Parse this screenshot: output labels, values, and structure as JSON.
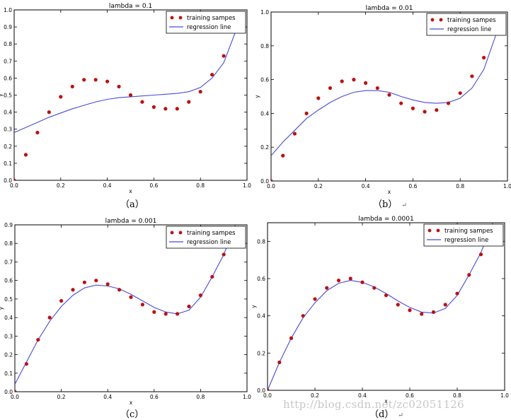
{
  "chart_data": [
    {
      "type": "scatter+line",
      "title": "lambda = 0.1",
      "xlabel": "x",
      "ylabel": "y",
      "xlim": [
        0.0,
        1.0
      ],
      "ylim": [
        0.0,
        1.0
      ],
      "xticks": [
        "0.0",
        "0.2",
        "0.4",
        "0.6",
        "0.8",
        "1.0"
      ],
      "yticks": [
        "0.0",
        "0.1",
        "0.2",
        "0.3",
        "0.4",
        "0.5",
        "0.6",
        "0.7",
        "0.8",
        "0.9",
        "1.0"
      ],
      "legend": [
        "training sampes",
        "regression line"
      ],
      "legend_position": "top-right",
      "caption": "（a）",
      "caption_mark": "",
      "samples_x": [
        0.0,
        0.05,
        0.1,
        0.15,
        0.2,
        0.25,
        0.3,
        0.35,
        0.4,
        0.45,
        0.5,
        0.55,
        0.6,
        0.65,
        0.7,
        0.75,
        0.8,
        0.85,
        0.9
      ],
      "samples_y": [
        0.0,
        0.15,
        0.28,
        0.4,
        0.49,
        0.55,
        0.59,
        0.59,
        0.58,
        0.55,
        0.5,
        0.46,
        0.43,
        0.42,
        0.42,
        0.46,
        0.52,
        0.62,
        0.73
      ],
      "line_x": [
        0.0,
        0.05,
        0.1,
        0.15,
        0.2,
        0.25,
        0.3,
        0.35,
        0.4,
        0.45,
        0.5,
        0.55,
        0.6,
        0.65,
        0.7,
        0.75,
        0.8,
        0.85,
        0.9,
        0.95
      ],
      "line_y": [
        0.28,
        0.31,
        0.34,
        0.37,
        0.395,
        0.42,
        0.44,
        0.46,
        0.475,
        0.485,
        0.49,
        0.495,
        0.5,
        0.505,
        0.51,
        0.52,
        0.545,
        0.6,
        0.69,
        0.87
      ]
    },
    {
      "type": "scatter+line",
      "title": "lambda = 0.01",
      "xlabel": "x",
      "ylabel": "y",
      "xlim": [
        0.0,
        1.0
      ],
      "ylim": [
        0.0,
        1.0
      ],
      "xticks": [
        "0.0",
        "0.2",
        "0.4",
        "0.6",
        "0.8",
        "1.0"
      ],
      "yticks": [
        "0.0",
        "0.2",
        "0.4",
        "0.6",
        "0.8",
        "1.0"
      ],
      "legend": [
        "training sampes",
        "regression line"
      ],
      "legend_position": "top-right",
      "caption": "（b）",
      "caption_mark": "↵",
      "samples_x": [
        0.0,
        0.05,
        0.1,
        0.15,
        0.2,
        0.25,
        0.3,
        0.35,
        0.4,
        0.45,
        0.5,
        0.55,
        0.6,
        0.65,
        0.7,
        0.75,
        0.8,
        0.85,
        0.9
      ],
      "samples_y": [
        0.0,
        0.15,
        0.28,
        0.4,
        0.49,
        0.55,
        0.59,
        0.6,
        0.58,
        0.55,
        0.51,
        0.46,
        0.43,
        0.41,
        0.42,
        0.46,
        0.52,
        0.62,
        0.73
      ],
      "line_x": [
        0.0,
        0.05,
        0.1,
        0.15,
        0.2,
        0.25,
        0.3,
        0.35,
        0.4,
        0.45,
        0.5,
        0.55,
        0.6,
        0.65,
        0.7,
        0.75,
        0.8,
        0.85,
        0.9,
        0.95
      ],
      "line_y": [
        0.15,
        0.23,
        0.3,
        0.37,
        0.42,
        0.465,
        0.5,
        0.525,
        0.535,
        0.535,
        0.525,
        0.5,
        0.48,
        0.465,
        0.46,
        0.465,
        0.49,
        0.55,
        0.66,
        0.86
      ]
    },
    {
      "type": "scatter+line",
      "title": "lambda = 0.001",
      "xlabel": "x",
      "ylabel": "y",
      "xlim": [
        0.0,
        1.0
      ],
      "ylim": [
        0.0,
        0.9
      ],
      "xticks": [
        "0.0",
        "0.2",
        "0.4",
        "0.6",
        "0.8",
        "1.0"
      ],
      "yticks": [
        "0.0",
        "0.1",
        "0.2",
        "0.3",
        "0.4",
        "0.5",
        "0.6",
        "0.7",
        "0.8",
        "0.9"
      ],
      "legend": [
        "training sampes",
        "regression line"
      ],
      "legend_position": "top-right",
      "caption": "（c）",
      "caption_mark": "",
      "samples_x": [
        0.0,
        0.05,
        0.1,
        0.15,
        0.2,
        0.25,
        0.3,
        0.35,
        0.4,
        0.45,
        0.5,
        0.55,
        0.6,
        0.65,
        0.7,
        0.75,
        0.8,
        0.85,
        0.9
      ],
      "samples_y": [
        0.0,
        0.15,
        0.28,
        0.4,
        0.49,
        0.55,
        0.59,
        0.6,
        0.58,
        0.55,
        0.51,
        0.47,
        0.43,
        0.42,
        0.42,
        0.46,
        0.52,
        0.62,
        0.74
      ],
      "line_x": [
        0.0,
        0.05,
        0.1,
        0.15,
        0.2,
        0.25,
        0.3,
        0.35,
        0.4,
        0.45,
        0.5,
        0.55,
        0.6,
        0.65,
        0.7,
        0.75,
        0.8,
        0.85,
        0.9,
        0.95
      ],
      "line_y": [
        0.04,
        0.16,
        0.28,
        0.38,
        0.46,
        0.52,
        0.56,
        0.575,
        0.57,
        0.555,
        0.525,
        0.49,
        0.455,
        0.43,
        0.42,
        0.44,
        0.51,
        0.62,
        0.74,
        0.9
      ]
    },
    {
      "type": "scatter+line",
      "title": "lambda = 0.0001",
      "xlabel": "x",
      "ylabel": "y",
      "xlim": [
        0.0,
        1.0
      ],
      "ylim": [
        0.0,
        0.9
      ],
      "xticks": [
        "0.0",
        "0.2",
        "0.4",
        "0.6",
        "0.8",
        "1.0"
      ],
      "yticks": [
        "0.0",
        "0.2",
        "0.4",
        "0.6",
        "0.8"
      ],
      "legend": [
        "training sampes",
        "regression line"
      ],
      "legend_position": "top-right",
      "caption": "（d）",
      "caption_mark": "↵",
      "samples_x": [
        0.0,
        0.05,
        0.1,
        0.15,
        0.2,
        0.25,
        0.3,
        0.35,
        0.4,
        0.45,
        0.5,
        0.55,
        0.6,
        0.65,
        0.7,
        0.75,
        0.8,
        0.85,
        0.9
      ],
      "samples_y": [
        0.0,
        0.15,
        0.28,
        0.4,
        0.49,
        0.55,
        0.59,
        0.6,
        0.58,
        0.55,
        0.51,
        0.46,
        0.43,
        0.41,
        0.42,
        0.46,
        0.52,
        0.62,
        0.73
      ],
      "line_x": [
        0.0,
        0.05,
        0.1,
        0.15,
        0.2,
        0.25,
        0.3,
        0.35,
        0.4,
        0.45,
        0.5,
        0.55,
        0.6,
        0.65,
        0.7,
        0.75,
        0.8,
        0.85,
        0.9,
        0.95
      ],
      "line_y": [
        0.0,
        0.15,
        0.28,
        0.39,
        0.47,
        0.535,
        0.575,
        0.59,
        0.58,
        0.555,
        0.52,
        0.48,
        0.445,
        0.42,
        0.415,
        0.44,
        0.51,
        0.62,
        0.74,
        0.9
      ]
    }
  ],
  "colors": {
    "sample": "#bb1111",
    "line": "#4a4ad6",
    "axis": "#000000"
  },
  "watermark": "http://blog.csdn.net/zc02051126"
}
